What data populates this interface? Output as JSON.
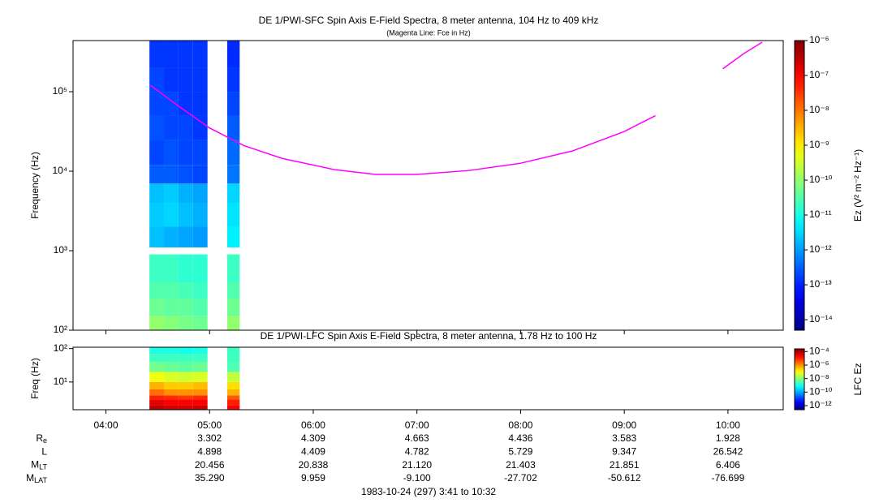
{
  "chart_data": [
    {
      "type": "heatmap",
      "title": "DE 1/PWI-SFC  Spin Axis E-Field Spectra, 8 meter antenna, 104 Hz to 409 kHz",
      "subtitle": "(Magenta Line: Fce in Hz)",
      "y_label": "Frequency (Hz)",
      "colorbar_label": "Ez (V² m⁻² Hz⁻¹)",
      "xlim": [
        3.683,
        10.533
      ],
      "xticks": [
        {
          "value": 4,
          "label": "04:00"
        },
        {
          "value": 5,
          "label": "05:00"
        },
        {
          "value": 6,
          "label": "06:00"
        },
        {
          "value": 7,
          "label": "07:00"
        },
        {
          "value": 8,
          "label": "08:00"
        },
        {
          "value": 9,
          "label": "09:00"
        },
        {
          "value": 10,
          "label": "10:00"
        }
      ],
      "ylim": [
        100,
        440000
      ],
      "ylog": true,
      "yticks": [
        {
          "value": 100,
          "label": "10²"
        },
        {
          "value": 1000,
          "label": "10³"
        },
        {
          "value": 10000,
          "label": "10⁴"
        },
        {
          "value": 100000,
          "label": "10⁵"
        }
      ],
      "clim": [
        5e-15,
        1e-06
      ],
      "clog": true,
      "cticks": [
        {
          "value": 1e-06,
          "label": "10⁻⁶"
        },
        {
          "value": 1e-07,
          "label": "10⁻⁷"
        },
        {
          "value": 1e-08,
          "label": "10⁻⁸"
        },
        {
          "value": 1e-09,
          "label": "10⁻⁹"
        },
        {
          "value": 1e-10,
          "label": "10⁻¹⁰"
        },
        {
          "value": 1e-11,
          "label": "10⁻¹¹"
        },
        {
          "value": 1e-12,
          "label": "10⁻¹²"
        },
        {
          "value": 1e-13,
          "label": "10⁻¹³"
        },
        {
          "value": 1e-14,
          "label": "10⁻¹⁴"
        }
      ],
      "x_bins": [
        4.42,
        4.56,
        4.7,
        4.84,
        4.98,
        5.17,
        5.29
      ],
      "y_bins": [
        100,
        150,
        250,
        400,
        900,
        1100,
        2000,
        4000,
        7000,
        12000,
        25000,
        50000,
        100000,
        200000,
        440000
      ],
      "values": [
        [
          1e-10,
          5e-11,
          3e-11,
          2e-11,
          null,
          2e-12,
          2.5e-12,
          2e-12,
          3e-13,
          2e-13,
          2.5e-13,
          2e-13,
          2e-13,
          1.5e-13
        ],
        [
          8e-11,
          4e-11,
          3e-11,
          2e-11,
          null,
          1.5e-12,
          3e-12,
          2.5e-12,
          3e-13,
          2.5e-13,
          2e-13,
          2e-13,
          1.5e-13,
          1.5e-13
        ],
        [
          6e-11,
          4e-11,
          2.5e-11,
          1.5e-11,
          null,
          1.2e-12,
          2e-12,
          1.5e-12,
          2.5e-13,
          2e-13,
          2e-13,
          1.5e-13,
          1.5e-13,
          1.5e-13
        ],
        [
          5e-11,
          3e-11,
          2e-11,
          1.5e-11,
          null,
          1e-12,
          1.5e-12,
          1.2e-12,
          2e-13,
          2e-13,
          1.5e-13,
          1.5e-13,
          1.5e-13,
          1.5e-13
        ],
        [
          null,
          null,
          null,
          null,
          null,
          null,
          null,
          null,
          null,
          null,
          null,
          null,
          null,
          null
        ],
        [
          1e-10,
          5e-11,
          3e-11,
          2e-11,
          null,
          5e-12,
          4e-12,
          3e-12,
          5e-13,
          4e-13,
          3e-13,
          2e-13,
          1.5e-13,
          1.2e-13
        ]
      ],
      "line": {
        "color": "#ff00ff",
        "x": [
          4.43,
          4.7,
          5.0,
          5.33,
          5.7,
          6.2,
          6.6,
          7.0,
          7.5,
          8.0,
          8.5,
          9.0,
          9.3,
          9.6,
          9.95,
          10.15,
          10.33
        ],
        "values": [
          120000,
          66000,
          35000,
          21000,
          14500,
          10500,
          9100,
          9100,
          10200,
          12600,
          18000,
          31600,
          50000,
          null,
          194000,
          300000,
          420000
        ]
      }
    },
    {
      "type": "heatmap",
      "title": "DE 1/PWI-LFC  Spin Axis E-Field Spectra, 8 meter antenna, 1.78 Hz to 100 Hz",
      "y_label": "Freq (Hz)",
      "colorbar_label": "LFC Ez",
      "xlim": [
        3.683,
        10.533
      ],
      "xticks": [
        {
          "value": 4,
          "label": "04:00"
        },
        {
          "value": 5,
          "label": "05:00"
        },
        {
          "value": 6,
          "label": "06:00"
        },
        {
          "value": 7,
          "label": "07:00"
        },
        {
          "value": 8,
          "label": "08:00"
        },
        {
          "value": 9,
          "label": "09:00"
        },
        {
          "value": 10,
          "label": "10:00"
        }
      ],
      "ylim": [
        1.48,
        110
      ],
      "ylog": true,
      "yticks": [
        {
          "value": 10,
          "label": "10¹"
        },
        {
          "value": 100,
          "label": "10²"
        }
      ],
      "clim": [
        2.5e-13,
        0.00025
      ],
      "clog": true,
      "cticks": [
        {
          "value": 0.0001,
          "label": "10⁻⁴"
        },
        {
          "value": 1e-06,
          "label": "10⁻⁶"
        },
        {
          "value": 1e-08,
          "label": "10⁻⁸"
        },
        {
          "value": 1e-10,
          "label": "10⁻¹⁰"
        },
        {
          "value": 1e-12,
          "label": "10⁻¹²"
        }
      ],
      "x_bins": [
        4.42,
        4.56,
        4.7,
        4.84,
        4.98,
        5.17,
        5.29
      ],
      "y_bins": [
        1.48,
        2,
        3,
        4,
        6,
        10,
        20,
        40,
        70,
        110
      ],
      "values": [
        [
          8e-05,
          3e-05,
          1e-05,
          2e-06,
          5e-07,
          8e-08,
          6e-09,
          2e-09,
          1e-09
        ],
        [
          5e-05,
          2e-05,
          8e-06,
          1e-06,
          3e-07,
          5e-08,
          5e-09,
          2e-09,
          1e-09
        ],
        [
          5e-05,
          2e-05,
          6e-06,
          1e-06,
          3e-07,
          4e-08,
          4e-09,
          2e-09,
          8e-10
        ],
        [
          6e-05,
          2e-05,
          8e-06,
          1e-06,
          4e-07,
          5e-08,
          5e-09,
          2e-09,
          1e-09
        ],
        [
          null,
          null,
          null,
          null,
          null,
          null,
          null,
          null,
          null
        ],
        [
          2e-05,
          1e-05,
          3e-06,
          5e-07,
          2e-07,
          3e-08,
          3e-09,
          2e-09,
          2e-09
        ]
      ]
    }
  ],
  "ephemeris": {
    "columns_x": [
      5,
      6,
      7,
      8,
      9,
      10
    ],
    "rows": [
      {
        "label": "R",
        "sub": "e",
        "values": [
          "3.302",
          "4.309",
          "4.663",
          "4.436",
          "3.583",
          "1.928"
        ]
      },
      {
        "label": "L",
        "values": [
          "4.898",
          "4.409",
          "4.782",
          "5.729",
          "9.347",
          "26.542"
        ]
      },
      {
        "label": "M",
        "sub": "LT",
        "values": [
          "20.456",
          "20.838",
          "21.120",
          "21.403",
          "21.851",
          "6.406"
        ]
      },
      {
        "label": "M",
        "sub": "LAT",
        "values": [
          "35.290",
          "9.959",
          "-9.100",
          "-27.702",
          "-50.612",
          "-76.699"
        ]
      }
    ]
  },
  "footer": "1983-10-24 (297) 3:41 to 10:32"
}
